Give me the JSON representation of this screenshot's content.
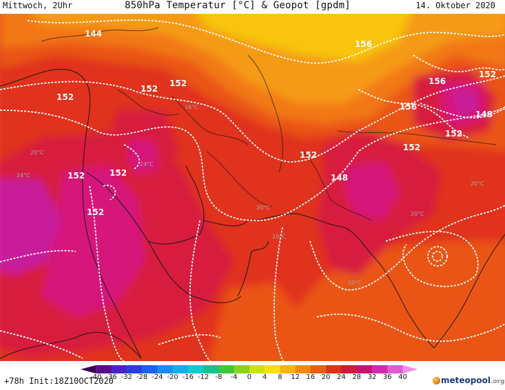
{
  "header": {
    "left_label": "Mittwoch, 2Uhr",
    "title": "850hPa Temperatur [°C] & Geopot [gpdm]",
    "date": "14. Oktober 2020"
  },
  "footer": {
    "run_info": "+78h Init:18Z10OCT2020",
    "brand_name": "meteopool",
    "brand_tld": ".org"
  },
  "colors": {
    "band_t32": "#c81e9a",
    "band_t28": "#d6167a",
    "band_t24": "#d81c3e",
    "band_t20": "#e0321a",
    "band_t16": "#ea5418",
    "band_t12": "#f27818",
    "band_t8": "#f59a14",
    "band_t4": "#f8c40e",
    "geopot_lines": "#ffffff",
    "coastlines": "#1a1a1a"
  },
  "colorbar": {
    "ticks": [
      "-40",
      "-36",
      "-32",
      "-28",
      "-24",
      "-20",
      "-16",
      "-12",
      "-8",
      "-4",
      "0",
      "4",
      "8",
      "12",
      "16",
      "20",
      "24",
      "28",
      "32",
      "36",
      "40"
    ],
    "colors": [
      "#3a0050",
      "#5a0d8a",
      "#4a22c8",
      "#2a3be6",
      "#1a62f0",
      "#1a8cf0",
      "#12b0e8",
      "#10cccc",
      "#14c48c",
      "#3cc83c",
      "#8ad41c",
      "#c8e40c",
      "#f8e00c",
      "#f8b40c",
      "#f4880c",
      "#ec5c10",
      "#e03018",
      "#d0183c",
      "#c81070",
      "#d02cac",
      "#e05cd0",
      "#f090e4"
    ]
  },
  "geopot_labels": [
    "144",
    "152",
    "152",
    "152",
    "152",
    "152",
    "152",
    "152",
    "152",
    "148",
    "156",
    "156",
    "156",
    "152",
    "148",
    "152"
  ],
  "temp_labels": [
    "20°C",
    "24°C",
    "24°C",
    "20°C",
    "20°C",
    "20°C",
    "20°C",
    "20°C",
    "16°C"
  ]
}
